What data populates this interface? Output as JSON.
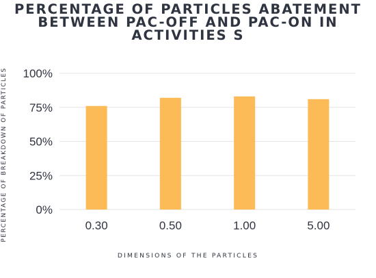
{
  "chart_data": {
    "type": "bar",
    "title_lines": [
      "PERCENTAGE OF PARTICLES ABATEMENT",
      "BETWEEN PAC-OFF AND PAC-ON  IN",
      "ACTIVITIES S"
    ],
    "xlabel": "DIMENSIONS OF THE PARTICLES",
    "ylabel": "PERCENTAGE OF BREAKDOWN OF PARTICLES",
    "categories": [
      "0.30",
      "0.50",
      "1.00",
      "5.00"
    ],
    "values": [
      76,
      82,
      83,
      81
    ],
    "y_ticks": [
      "0%",
      "25%",
      "50%",
      "75%",
      "100%"
    ],
    "ylim": [
      0,
      100
    ],
    "grid": true,
    "bar_color": "#FDBB57",
    "grid_color": "#E3E3E3"
  }
}
